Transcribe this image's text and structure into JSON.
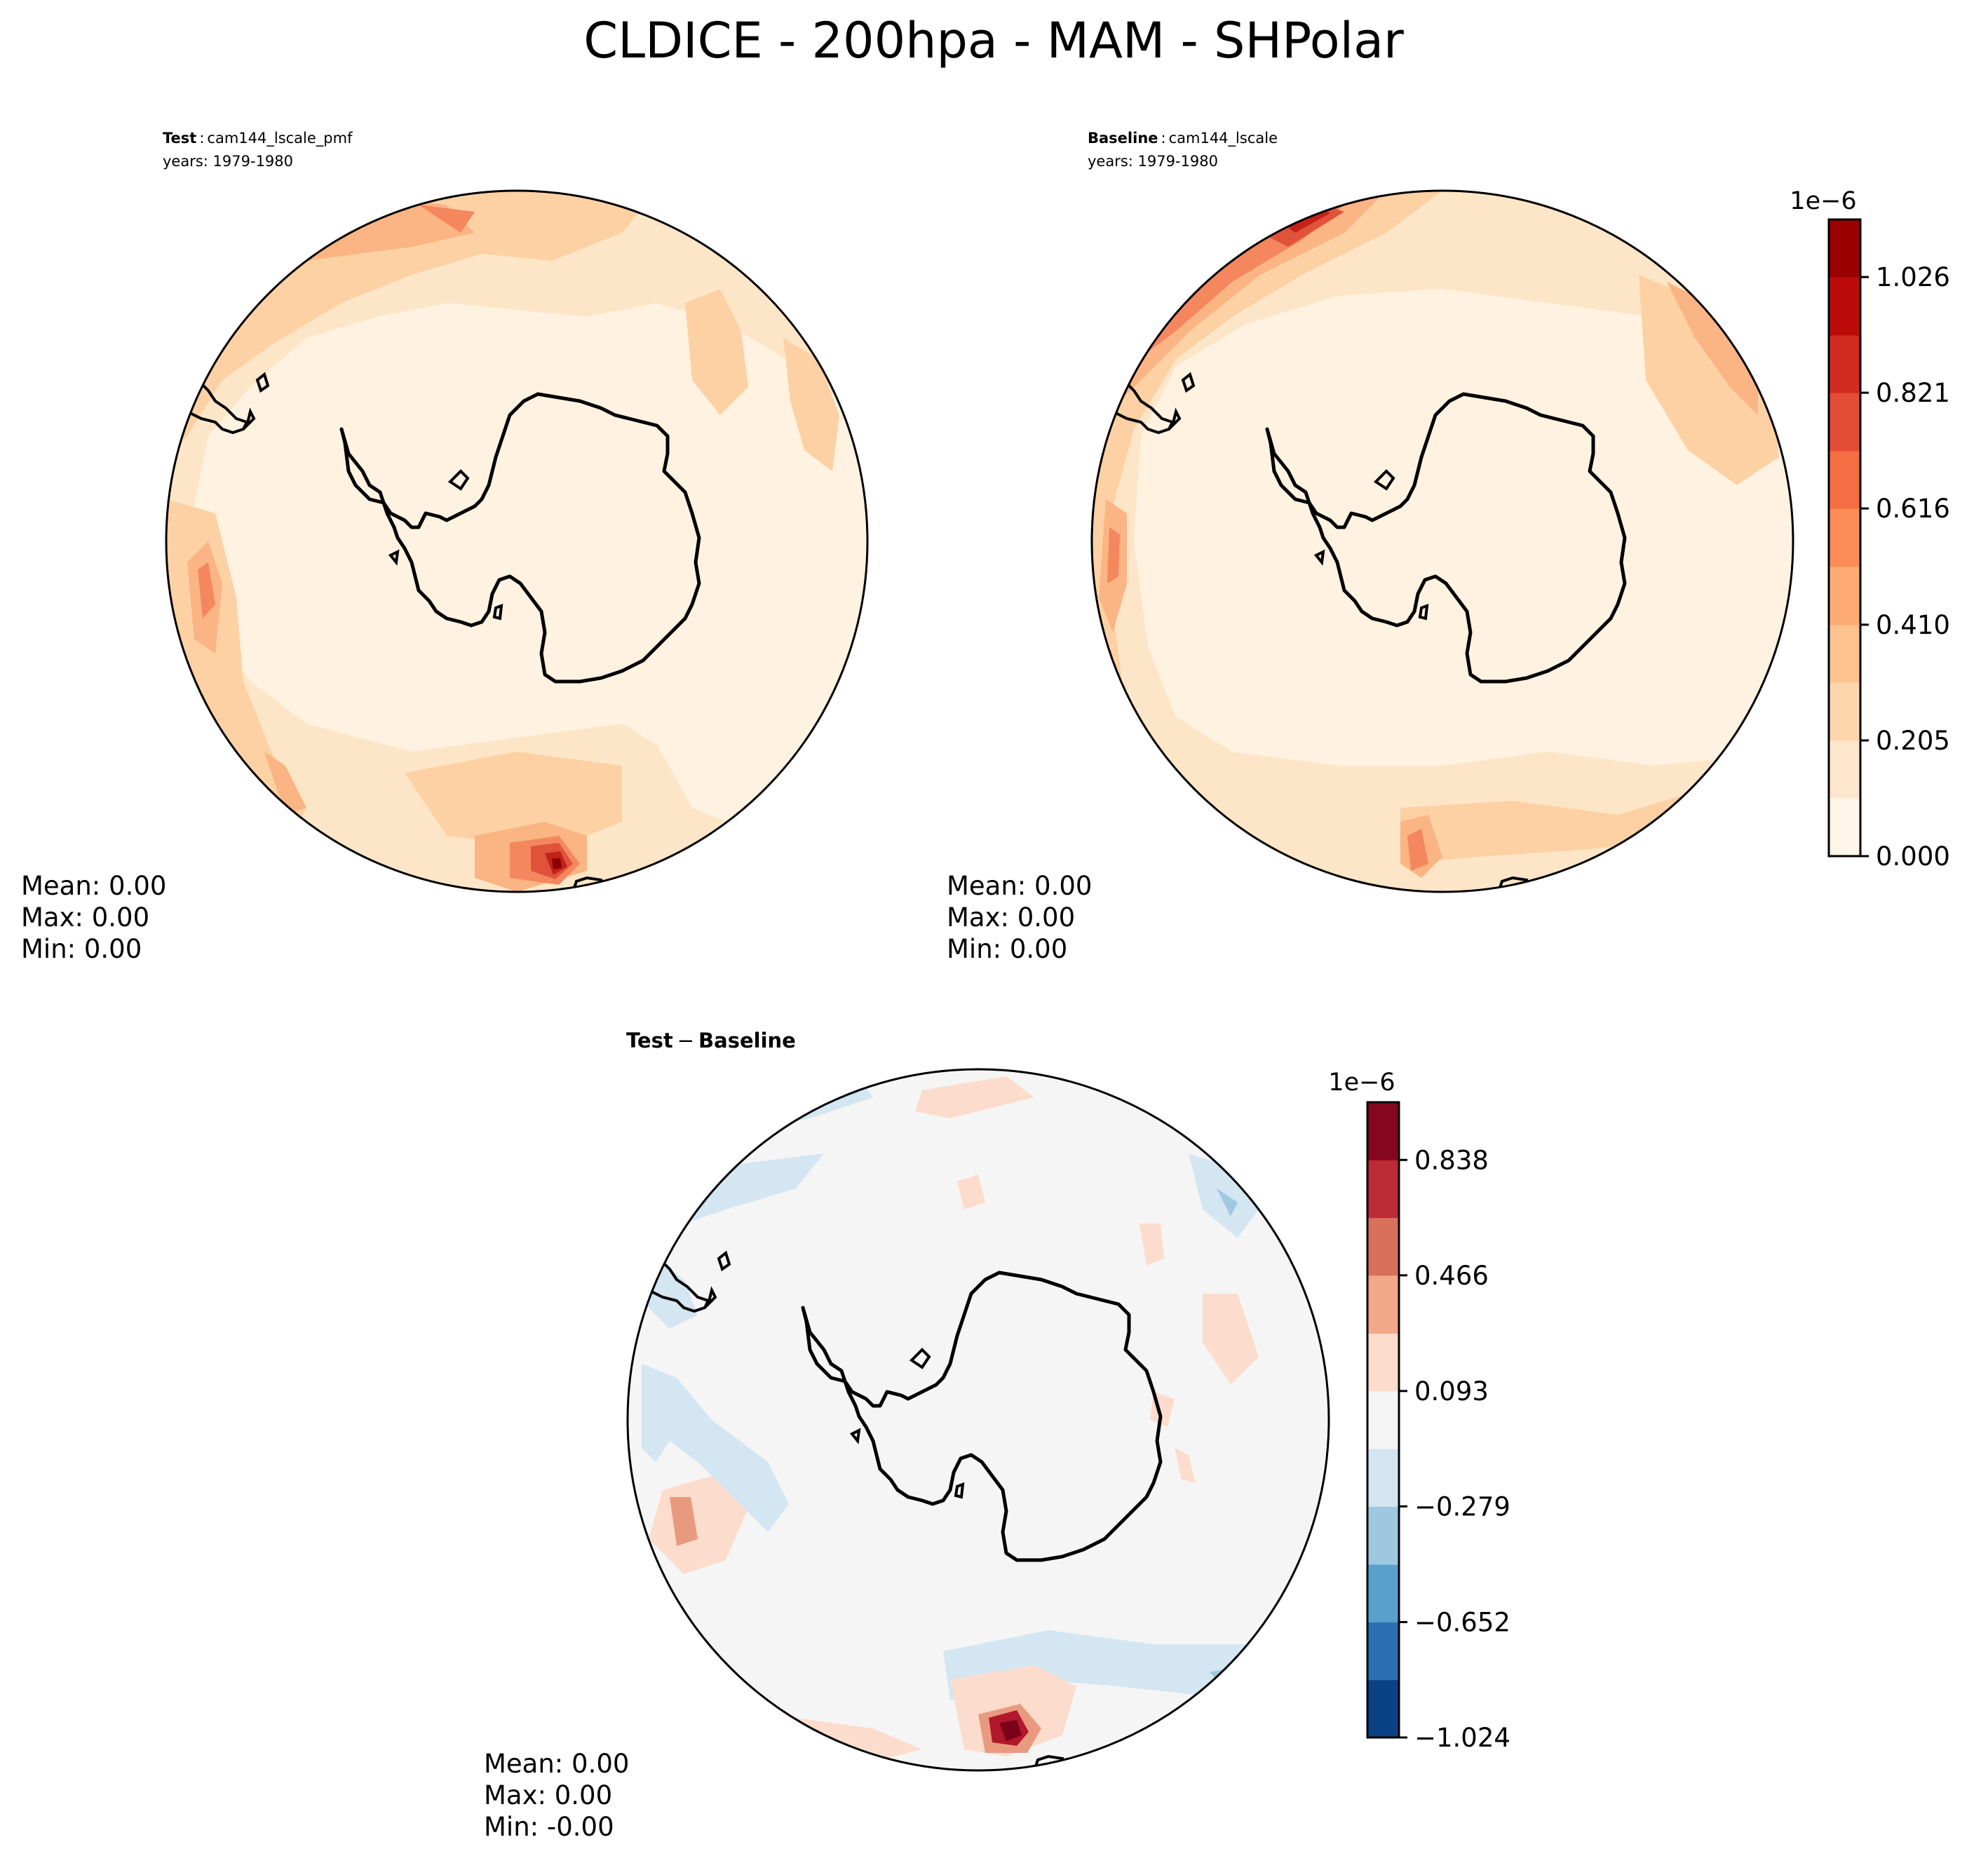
{
  "figure_title": "CLDICE - 200hpa - MAM - SHPolar",
  "chart_data": [
    {
      "type": "heatmap",
      "projection": "south-polar-stereographic",
      "panel": "test",
      "title_bold": "Test",
      "title_sep": ":",
      "case_name": "cam144_lscale_pmf",
      "years": "years: 1979-1980",
      "stats": {
        "mean": "Mean:  0.00",
        "max": "Max:  0.00",
        "min": "Min:  0.00"
      }
    },
    {
      "type": "heatmap",
      "projection": "south-polar-stereographic",
      "panel": "baseline",
      "title_bold": "Baseline",
      "title_sep": ":",
      "case_name": "cam144_lscale",
      "years": "years: 1979-1980",
      "stats": {
        "mean": "Mean:  0.00",
        "max": "Max:  0.00",
        "min": "Min:  0.00"
      },
      "colorbar": {
        "exponent": "1e−6",
        "range": [
          0.0,
          1.128
        ],
        "ticks": [
          0.0,
          0.205,
          0.41,
          0.616,
          0.821,
          1.026
        ],
        "tick_labels": [
          "0.000",
          "0.205",
          "0.410",
          "0.616",
          "0.821",
          "1.026"
        ],
        "levels": [
          0.0,
          0.103,
          0.205,
          0.308,
          0.41,
          0.513,
          0.616,
          0.718,
          0.821,
          0.923,
          1.026,
          1.128
        ],
        "colors": [
          "#fff5e9",
          "#fee6cc",
          "#fdd6ac",
          "#fdc38e",
          "#fdab73",
          "#fc8d59",
          "#f46d43",
          "#e34c35",
          "#d12a20",
          "#bc0a0a",
          "#9a0000",
          "#7f0000"
        ]
      }
    },
    {
      "type": "heatmap",
      "projection": "south-polar-stereographic",
      "panel": "difference",
      "title_a": "Test",
      "title_op": "−",
      "title_b": "Baseline",
      "stats": {
        "mean": "Mean:  0.00",
        "max": "Max:  0.00",
        "min": "Min: -0.00"
      },
      "colorbar": {
        "exponent": "1e−6",
        "range": [
          -1.024,
          1.024
        ],
        "ticks": [
          -1.024,
          -0.652,
          -0.279,
          0.093,
          0.466,
          0.838
        ],
        "tick_labels": [
          "−1.024",
          "−0.652",
          "−0.279",
          "0.093",
          "0.466",
          "0.838"
        ],
        "levels": [
          -1.024,
          -0.838,
          -0.652,
          -0.466,
          -0.279,
          -0.093,
          0.093,
          0.279,
          0.466,
          0.652,
          0.838,
          1.024
        ],
        "colors": [
          "#0b4285",
          "#2c70b3",
          "#5aa0cc",
          "#9ec8e0",
          "#d2e5f0",
          "#f5f5f5",
          "#fcdccc",
          "#f2a789",
          "#d8705a",
          "#bc2a35",
          "#85071f"
        ]
      }
    }
  ],
  "colors": {
    "cmap_bg": "#fff2e0",
    "cmap_l1": "#fde6c8",
    "cmap_l2": "#fdd1a4",
    "cmap_l3": "#fbb484",
    "cmap_l4": "#f4875e",
    "cmap_l5": "#e0533a",
    "cmap_l6": "#c42218",
    "cmap_l7": "#8b0000",
    "diff_bg": "#f5f5f5",
    "diff_neg1": "#d3e6f2",
    "diff_neg2": "#9fc9e1",
    "diff_neg3": "#4a8fc2",
    "diff_pos1": "#fcdccc",
    "diff_pos2": "#e89a7f",
    "diff_pos3": "#b2182b",
    "diff_pos4": "#7b0019"
  }
}
